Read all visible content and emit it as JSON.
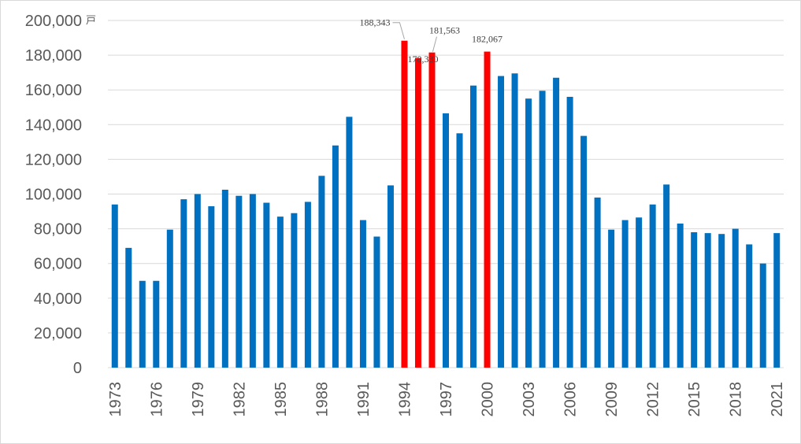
{
  "chart_data": {
    "type": "bar",
    "unit_label": "戸",
    "ylim": [
      0,
      200000
    ],
    "yticks": [
      0,
      20000,
      40000,
      60000,
      80000,
      100000,
      120000,
      140000,
      160000,
      180000,
      200000
    ],
    "ytick_labels": [
      "0",
      "20,000",
      "40,000",
      "60,000",
      "80,000",
      "100,000",
      "120,000",
      "140,000",
      "160,000",
      "180,000",
      "200,000"
    ],
    "grid": true,
    "colors": {
      "normal": "#0070C0",
      "highlight": "#FF0000",
      "grid": "#d9d9d9"
    },
    "categories": [
      1973,
      1974,
      1975,
      1976,
      1977,
      1978,
      1979,
      1980,
      1981,
      1982,
      1983,
      1984,
      1985,
      1986,
      1987,
      1988,
      1989,
      1990,
      1991,
      1992,
      1993,
      1994,
      1995,
      1996,
      1997,
      1998,
      1999,
      2000,
      2001,
      2002,
      2003,
      2004,
      2005,
      2006,
      2007,
      2008,
      2009,
      2010,
      2011,
      2012,
      2013,
      2014,
      2015,
      2016,
      2017,
      2018,
      2019,
      2020,
      2021
    ],
    "xtick_labels": [
      "1973",
      "1976",
      "1979",
      "1982",
      "1985",
      "1988",
      "1991",
      "1994",
      "1997",
      "2000",
      "2003",
      "2006",
      "2009",
      "2012",
      "2015",
      "2018",
      "2021"
    ],
    "values": [
      94000,
      69000,
      50000,
      50000,
      79500,
      97000,
      100000,
      93000,
      102500,
      99000,
      100000,
      95000,
      87000,
      89000,
      95500,
      110500,
      128000,
      144500,
      85000,
      75500,
      105000,
      188343,
      178330,
      181563,
      146500,
      135000,
      162500,
      182067,
      168000,
      169500,
      155000,
      159500,
      167000,
      156000,
      133500,
      98000,
      79500,
      85000,
      86500,
      94000,
      105500,
      83000,
      78000,
      77500,
      77000,
      80000,
      71000,
      60000,
      77500
    ],
    "highlight": [
      1994,
      1995,
      1996,
      2000
    ],
    "data_labels": [
      {
        "category": 1994,
        "text": "188,343"
      },
      {
        "category": 1995,
        "text": "178,330"
      },
      {
        "category": 1996,
        "text": "181,563"
      },
      {
        "category": 2000,
        "text": "182,067"
      }
    ]
  }
}
